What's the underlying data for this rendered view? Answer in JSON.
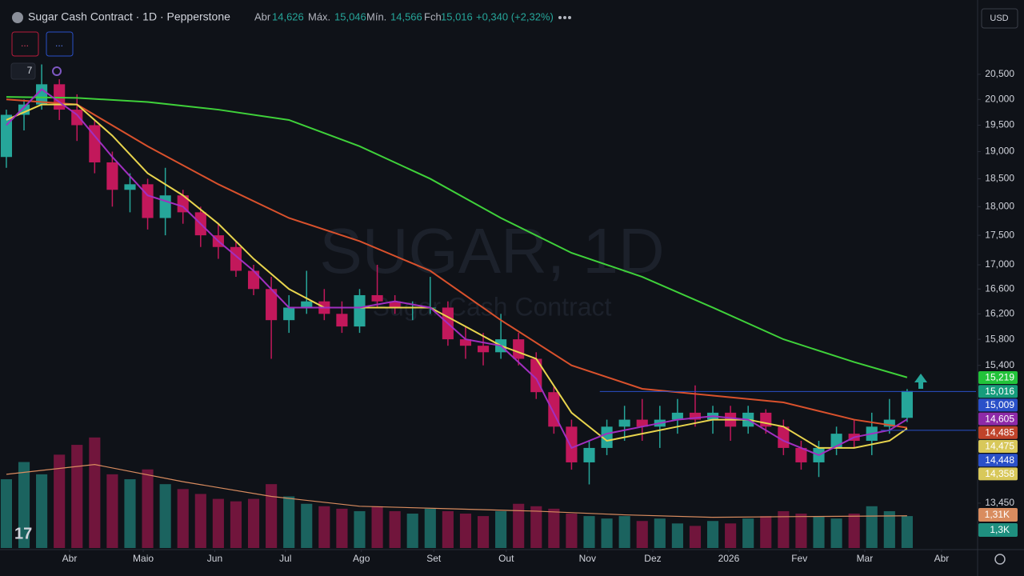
{
  "header": {
    "title": "Sugar Cash Contract · 1D · Pepperstone",
    "open_label": "Abr",
    "open": "14,626",
    "high_label": "Máx.",
    "high": "15,046",
    "low_label": "Mín.",
    "low": "14,566",
    "close_label": "Fch",
    "close": "15,016",
    "change": "+0,340 (+2,32%)",
    "currency": "USD",
    "indicator_count": "7",
    "button_1": "...",
    "button_2": "..."
  },
  "chart_data": {
    "type": "candlestick",
    "watermark": {
      "symbol": "SUGAR, 1D",
      "name": "Sugar Cash Contract"
    },
    "log_scale": true,
    "up_color": "#26a69a",
    "down_color": "#c2185b",
    "xlim": [
      -0.36,
      54.9
    ],
    "ylim": [
      12870,
      21370
    ],
    "volume_lim": [
      0,
      5700
    ],
    "xticks": [
      {
        "value": 3.58,
        "label": "Abr"
      },
      {
        "value": 7.75,
        "label": "Maio"
      },
      {
        "value": 11.8,
        "label": "Jun"
      },
      {
        "value": 15.8,
        "label": "Jul"
      },
      {
        "value": 20.1,
        "label": "Ago"
      },
      {
        "value": 24.2,
        "label": "Set"
      },
      {
        "value": 28.3,
        "label": "Out"
      },
      {
        "value": 32.9,
        "label": "Nov"
      },
      {
        "value": 36.6,
        "label": "Dez"
      },
      {
        "value": 40.9,
        "label": "2026"
      },
      {
        "value": 44.9,
        "label": "Fev"
      },
      {
        "value": 48.6,
        "label": "Mar"
      },
      {
        "value": 52.95,
        "label": "Abr"
      }
    ],
    "yticks": [
      {
        "value": 20500,
        "label": "20,500"
      },
      {
        "value": 20000,
        "label": "20,000"
      },
      {
        "value": 19500,
        "label": "19,500"
      },
      {
        "value": 19000,
        "label": "19,000"
      },
      {
        "value": 18500,
        "label": "18,500"
      },
      {
        "value": 18000,
        "label": "18,000"
      },
      {
        "value": 17500,
        "label": "17,500"
      },
      {
        "value": 17000,
        "label": "17,000"
      },
      {
        "value": 16600,
        "label": "16,600"
      },
      {
        "value": 16200,
        "label": "16,200"
      },
      {
        "value": 15800,
        "label": "15,800"
      },
      {
        "value": 15400,
        "label": "15,400"
      },
      {
        "value": 13450,
        "label": "13,450"
      }
    ],
    "open": [
      18900,
      19700,
      19900,
      20300,
      19800,
      19500,
      18800,
      18300,
      18400,
      17800,
      18200,
      17900,
      17500,
      17300,
      16900,
      16600,
      16100,
      16300,
      16400,
      16200,
      16000,
      16500,
      16400,
      16300,
      16300,
      16300,
      15800,
      15700,
      15600,
      15800,
      15500,
      15000,
      14500,
      14000,
      14200,
      14500,
      14600,
      14500,
      14600,
      14700,
      14600,
      14700,
      14500,
      14700,
      14500,
      14200,
      14000,
      14200,
      14400,
      14300,
      14500,
      14626
    ],
    "high": [
      19800,
      20000,
      20700,
      20400,
      20100,
      19600,
      19000,
      18600,
      18500,
      18700,
      18300,
      18000,
      17700,
      17400,
      17000,
      16800,
      16500,
      16900,
      16600,
      16400,
      16600,
      17000,
      16500,
      16400,
      16800,
      16400,
      16000,
      15900,
      16200,
      15900,
      15600,
      15100,
      14600,
      14300,
      14600,
      14800,
      14900,
      14800,
      14900,
      15100,
      14800,
      14800,
      14800,
      14750,
      14600,
      14300,
      14300,
      14500,
      14600,
      14700,
      14900,
      15046
    ],
    "low": [
      18700,
      19400,
      19800,
      19600,
      19200,
      18600,
      18000,
      17900,
      17600,
      17500,
      17700,
      17300,
      17100,
      16800,
      16500,
      15500,
      15900,
      16200,
      16100,
      15900,
      15900,
      16300,
      16200,
      16100,
      16200,
      15700,
      15500,
      15400,
      15500,
      15400,
      14900,
      14400,
      13900,
      13700,
      14100,
      14300,
      14300,
      14200,
      14400,
      14500,
      14400,
      14300,
      14400,
      14400,
      14100,
      13900,
      13800,
      14100,
      14200,
      14100,
      14400,
      14566
    ],
    "close": [
      19700,
      19900,
      20300,
      19800,
      19500,
      18800,
      18300,
      18400,
      17800,
      18200,
      17900,
      17500,
      17300,
      16900,
      16600,
      16100,
      16300,
      16400,
      16200,
      16000,
      16500,
      16400,
      16300,
      16300,
      16300,
      15800,
      15700,
      15600,
      15800,
      15500,
      15000,
      14500,
      14000,
      14200,
      14500,
      14600,
      14500,
      14600,
      14700,
      14600,
      14700,
      14500,
      14700,
      14500,
      14200,
      14000,
      14200,
      14400,
      14300,
      14500,
      14600,
      15016
    ],
    "volume": [
      2800,
      3500,
      3000,
      3800,
      4200,
      4500,
      3000,
      2800,
      3200,
      2600,
      2400,
      2200,
      2000,
      1900,
      2000,
      2600,
      2100,
      1800,
      1700,
      1600,
      1500,
      1700,
      1500,
      1400,
      1600,
      1500,
      1400,
      1300,
      1500,
      1800,
      1700,
      1600,
      1400,
      1300,
      1200,
      1300,
      1100,
      1200,
      1000,
      900,
      1100,
      1000,
      1200,
      1300,
      1500,
      1400,
      1300,
      1200,
      1400,
      1700,
      1500,
      1300
    ],
    "lines": [
      {
        "color": "#3fd13a",
        "x": [
          0,
          4,
          8,
          12,
          16,
          20,
          24,
          28,
          32,
          36,
          40,
          44,
          48,
          51
        ],
        "values": [
          20050,
          20030,
          19950,
          19800,
          19600,
          19100,
          18500,
          17800,
          17200,
          16800,
          16300,
          15800,
          15450,
          15219
        ]
      },
      {
        "color": "#d9512c",
        "x": [
          0,
          4,
          8,
          12,
          16,
          20,
          24,
          28,
          32,
          36,
          40,
          44,
          48,
          51
        ],
        "values": [
          20000,
          19900,
          19100,
          18400,
          17800,
          17400,
          16900,
          16100,
          15400,
          15050,
          14950,
          14850,
          14600,
          14485
        ]
      },
      {
        "color": "#e8d44d",
        "x": [
          0,
          2,
          4,
          6,
          8,
          10,
          12,
          14,
          16,
          18,
          20,
          22,
          24,
          26,
          28,
          30,
          32,
          34,
          36,
          38,
          40,
          42,
          44,
          46,
          48,
          50,
          51
        ],
        "values": [
          19600,
          19900,
          19900,
          19300,
          18600,
          18200,
          17700,
          17100,
          16600,
          16300,
          16300,
          16300,
          16300,
          16000,
          15700,
          15500,
          14700,
          14300,
          14400,
          14500,
          14600,
          14600,
          14500,
          14200,
          14200,
          14300,
          14475
        ]
      },
      {
        "color": "#a12fc0",
        "x": [
          0,
          2,
          4,
          6,
          8,
          10,
          12,
          14,
          16,
          18,
          20,
          22,
          24,
          26,
          28,
          30,
          32,
          34,
          36,
          38,
          40,
          42,
          44,
          46,
          48,
          50,
          51
        ],
        "values": [
          19500,
          20200,
          19700,
          18900,
          18200,
          18000,
          17400,
          16900,
          16300,
          16300,
          16300,
          16400,
          16300,
          15800,
          15700,
          15200,
          14200,
          14400,
          14500,
          14600,
          14650,
          14600,
          14300,
          14100,
          14350,
          14450,
          14605
        ]
      }
    ],
    "volume_ma": {
      "color": "#d98c5f",
      "x": [
        0,
        5,
        10,
        15,
        20,
        25,
        30,
        35,
        40,
        45,
        51
      ],
      "values": [
        3000,
        3400,
        2700,
        2100,
        1700,
        1600,
        1500,
        1350,
        1250,
        1280,
        1310
      ]
    },
    "levels": [
      {
        "value": 15009,
        "xstart": 33.6
      },
      {
        "value": 14448,
        "xstart": 49.5
      }
    ],
    "price_labels": [
      {
        "value": 15219,
        "label": "15,219",
        "color": "#22c33a"
      },
      {
        "value": 15016,
        "label": "15,016",
        "color": "#169c7c"
      },
      {
        "value": 15009,
        "label": "15,009",
        "color": "#2a50c8"
      },
      {
        "value": 14605,
        "label": "14,605",
        "color": "#8e2aa8"
      },
      {
        "value": 14485,
        "label": "14,485",
        "color": "#c0432a"
      },
      {
        "value": 14475,
        "label": "14,475",
        "color": "#d8c85a"
      },
      {
        "value": 14448,
        "label": "14,448",
        "color": "#2a50c8"
      },
      {
        "value": 14358,
        "label": "14,358",
        "color": "#d8c85a"
      }
    ],
    "volume_labels": [
      {
        "value": 1310,
        "label": "1,31K",
        "color": "#d98c5f"
      },
      {
        "value": 1300,
        "label": "1,3K",
        "color": "#1f8f7f"
      }
    ]
  }
}
